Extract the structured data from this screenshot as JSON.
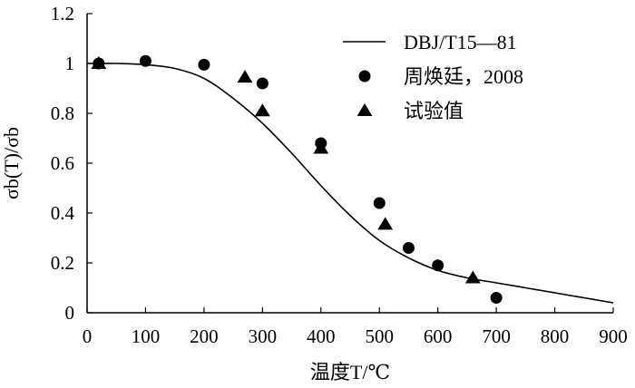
{
  "chart_data": {
    "type": "scatter",
    "title": "",
    "xlabel": "温度T/℃",
    "ylabel": "σb(T)/σb",
    "xlim": [
      0,
      900
    ],
    "ylim": [
      0,
      1.2
    ],
    "x_ticks": [
      0,
      100,
      200,
      300,
      400,
      500,
      600,
      700,
      800,
      900
    ],
    "x_tick_labels": [
      "0",
      "100",
      "200",
      "300",
      "400",
      "500",
      "600",
      "700",
      "800",
      "900"
    ],
    "y_ticks": [
      0,
      0.2,
      0.4,
      0.6,
      0.8,
      1,
      1.2
    ],
    "y_tick_labels": [
      "0",
      "0.2",
      "0.4",
      "0.6",
      "0.8",
      "1",
      "1.2"
    ],
    "grid": false,
    "legend_position": "top-right",
    "series": [
      {
        "name": "DBJ/T15—81",
        "kind": "line",
        "x": [
          0,
          20,
          50,
          100,
          150,
          200,
          250,
          300,
          350,
          400,
          450,
          500,
          550,
          600,
          650,
          700,
          750,
          800,
          850,
          900
        ],
        "y": [
          1.0,
          1.0,
          1.0,
          0.995,
          0.98,
          0.94,
          0.86,
          0.76,
          0.64,
          0.51,
          0.39,
          0.29,
          0.22,
          0.17,
          0.14,
          0.12,
          0.1,
          0.08,
          0.06,
          0.04
        ]
      },
      {
        "name": "周焕廷，2008",
        "kind": "circle",
        "x": [
          20,
          100,
          200,
          300,
          400,
          500,
          550,
          600,
          700
        ],
        "y": [
          1.0,
          1.01,
          0.995,
          0.92,
          0.68,
          0.44,
          0.26,
          0.19,
          0.06
        ]
      },
      {
        "name": "试验值",
        "kind": "triangle",
        "x": [
          20,
          270,
          300,
          400,
          510,
          660
        ],
        "y": [
          1.0,
          0.945,
          0.81,
          0.66,
          0.355,
          0.14
        ]
      }
    ]
  }
}
